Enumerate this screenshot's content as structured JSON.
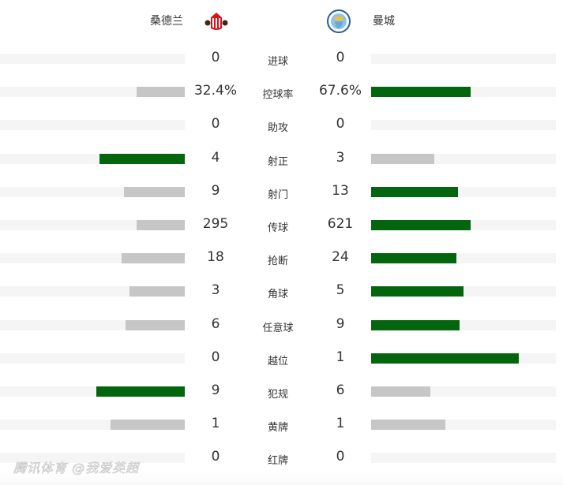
{
  "home_team": {
    "name": "桑德兰",
    "logo": "sunderland-crest"
  },
  "away_team": {
    "name": "曼城",
    "logo": "manchester-city-crest"
  },
  "colors": {
    "leader": "#03650d",
    "other": "#c6c6c6",
    "track": "#f5f5f5"
  },
  "stats": [
    {
      "label": "进球",
      "home": "0",
      "away": "0",
      "home_bar": 0,
      "away_bar": 0,
      "leader": "none"
    },
    {
      "label": "控球率",
      "home": "32.4%",
      "away": "67.6%",
      "home_bar": 0.26,
      "away_bar": 0.54,
      "leader": "away"
    },
    {
      "label": "助攻",
      "home": "0",
      "away": "0",
      "home_bar": 0,
      "away_bar": 0,
      "leader": "none"
    },
    {
      "label": "射正",
      "home": "4",
      "away": "3",
      "home_bar": 0.46,
      "away_bar": 0.34,
      "leader": "home"
    },
    {
      "label": "射门",
      "home": "9",
      "away": "13",
      "home_bar": 0.33,
      "away_bar": 0.47,
      "leader": "away"
    },
    {
      "label": "传球",
      "home": "295",
      "away": "621",
      "home_bar": 0.26,
      "away_bar": 0.54,
      "leader": "away"
    },
    {
      "label": "抢断",
      "home": "18",
      "away": "24",
      "home_bar": 0.34,
      "away_bar": 0.46,
      "leader": "away"
    },
    {
      "label": "角球",
      "home": "3",
      "away": "5",
      "home_bar": 0.3,
      "away_bar": 0.5,
      "leader": "away"
    },
    {
      "label": "任意球",
      "home": "6",
      "away": "9",
      "home_bar": 0.32,
      "away_bar": 0.48,
      "leader": "away"
    },
    {
      "label": "越位",
      "home": "0",
      "away": "1",
      "home_bar": 0,
      "away_bar": 0.8,
      "leader": "away"
    },
    {
      "label": "犯规",
      "home": "9",
      "away": "6",
      "home_bar": 0.48,
      "away_bar": 0.32,
      "leader": "home"
    },
    {
      "label": "黄牌",
      "home": "1",
      "away": "1",
      "home_bar": 0.4,
      "away_bar": 0.4,
      "leader": "none"
    },
    {
      "label": "红牌",
      "home": "0",
      "away": "0",
      "home_bar": 0,
      "away_bar": 0,
      "leader": "none"
    }
  ],
  "watermark": "腾讯体育 @我爱英超"
}
